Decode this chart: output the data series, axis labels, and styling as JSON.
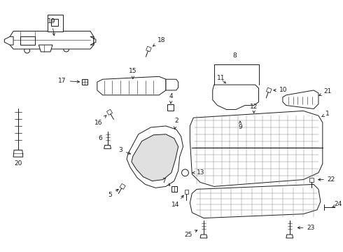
{
  "background_color": "#ffffff",
  "line_color": "#1a1a1a",
  "fig_w": 4.9,
  "fig_h": 3.6,
  "dpi": 100
}
